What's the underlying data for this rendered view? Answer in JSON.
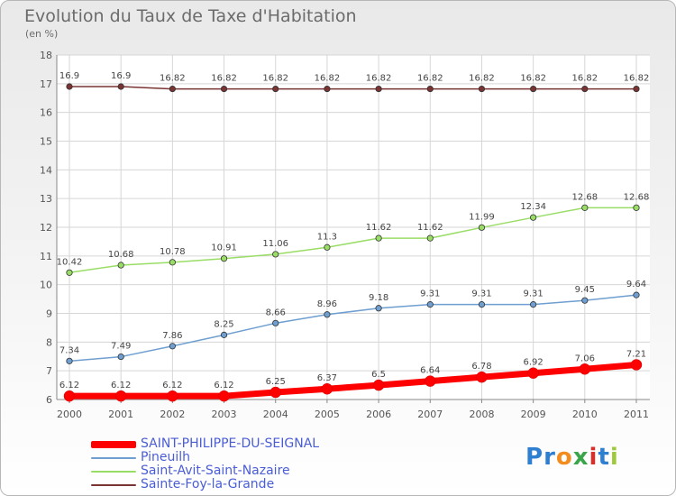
{
  "header": {
    "title": "Evolution du Taux de Taxe d'Habitation",
    "subtitle": "(en %)"
  },
  "logo": {
    "text": "Proxiti",
    "letters": [
      "P",
      "r",
      "o",
      "x",
      "i",
      "t",
      "i"
    ],
    "colors": [
      "#2f7fd0",
      "#2f7fd0",
      "#f28c1e",
      "#3aa64a",
      "#d4312c",
      "#2f7fd0",
      "#9fc93c"
    ]
  },
  "chart_data": {
    "type": "line",
    "title": "Evolution du Taux de Taxe d'Habitation",
    "subtitle": "(en %)",
    "x": [
      "2000",
      "2001",
      "2002",
      "2003",
      "2004",
      "2005",
      "2006",
      "2007",
      "2008",
      "2009",
      "2010",
      "2011"
    ],
    "ylim": [
      6,
      18
    ],
    "yticks": [
      6,
      7,
      8,
      9,
      10,
      11,
      12,
      13,
      14,
      15,
      16,
      17,
      18
    ],
    "grid": true,
    "legend_position": "bottom",
    "series": [
      {
        "name": "SAINT-PHILIPPE-DU-SEIGNAL",
        "color": "#ff0000",
        "values": [
          6.12,
          6.12,
          6.12,
          6.12,
          6.25,
          6.37,
          6.5,
          6.64,
          6.78,
          6.92,
          7.06,
          7.21
        ],
        "labels": [
          "6.12",
          "6.12",
          "6.12",
          "6.12",
          "6.25",
          "6.37",
          "6.5",
          "6.64",
          "6.78",
          "6.92",
          "7.06",
          "7.21"
        ]
      },
      {
        "name": "Pineuilh",
        "color": "#6e9fd0",
        "values": [
          7.34,
          7.49,
          7.86,
          8.25,
          8.66,
          8.96,
          9.18,
          9.31,
          9.31,
          9.31,
          9.45,
          9.64
        ],
        "labels": [
          "7.34",
          "7.49",
          "7.86",
          "8.25",
          "8.66",
          "8.96",
          "9.18",
          "9.31",
          "9.31",
          "9.31",
          "9.45",
          "9.64"
        ]
      },
      {
        "name": "Saint-Avit-Saint-Nazaire",
        "color": "#99dd66",
        "values": [
          10.42,
          10.68,
          10.78,
          10.91,
          11.06,
          11.3,
          11.62,
          11.62,
          11.99,
          12.34,
          12.68,
          12.68
        ],
        "labels": [
          "10.42",
          "10.68",
          "10.78",
          "10.91",
          "11.06",
          "11.3",
          "11.62",
          "11.62",
          "11.99",
          "12.34",
          "12.68",
          "12.68"
        ]
      },
      {
        "name": "Sainte-Foy-la-Grande",
        "color": "#7a3333",
        "values": [
          16.9,
          16.9,
          16.82,
          16.82,
          16.82,
          16.82,
          16.82,
          16.82,
          16.82,
          16.82,
          16.82,
          16.82
        ],
        "labels": [
          "16.9",
          "16.9",
          "16.82",
          "16.82",
          "16.82",
          "16.82",
          "16.82",
          "16.82",
          "16.82",
          "16.82",
          "16.82",
          "16.82"
        ]
      }
    ]
  }
}
